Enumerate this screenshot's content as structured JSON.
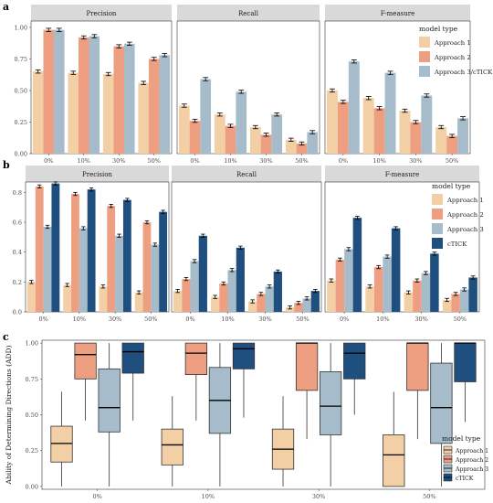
{
  "colors": {
    "approach1": "#f2cfa5",
    "approach2": "#ee9f82",
    "approach3": "#a7bccb",
    "etick": "#1f4f7e",
    "strip": "#d9d9d9",
    "panelBorder": "#333333"
  },
  "chart_data": [
    {
      "type": "bar",
      "panel_tag": "a",
      "facets": [
        "Precision",
        "Recall",
        "F-measure"
      ],
      "categories": [
        "0%",
        "10%",
        "30%",
        "50%"
      ],
      "ylim": [
        0,
        1.05
      ],
      "yticks": [
        "0.00",
        "0.25",
        "0.50",
        "0.75",
        "1.00"
      ],
      "ytick_values": [
        0,
        0.25,
        0.5,
        0.75,
        1.0
      ],
      "legend_title": "model type",
      "series": [
        {
          "name": "Approach 1",
          "color_key": "approach1",
          "values": [
            [
              0.65,
              0.64,
              0.63,
              0.56
            ],
            [
              0.38,
              0.31,
              0.21,
              0.11
            ],
            [
              0.5,
              0.44,
              0.34,
              0.21
            ]
          ]
        },
        {
          "name": "Approach 2",
          "color_key": "approach2",
          "values": [
            [
              0.98,
              0.92,
              0.85,
              0.75
            ],
            [
              0.26,
              0.22,
              0.15,
              0.08
            ],
            [
              0.41,
              0.36,
              0.25,
              0.14
            ]
          ]
        },
        {
          "name": "Approach 3/cTICK",
          "color_key": "approach3",
          "values": [
            [
              0.98,
              0.93,
              0.87,
              0.78
            ],
            [
              0.59,
              0.49,
              0.31,
              0.17
            ],
            [
              0.73,
              0.64,
              0.46,
              0.28
            ]
          ]
        }
      ]
    },
    {
      "type": "bar",
      "panel_tag": "b",
      "facets": [
        "Precision",
        "Recall",
        "F-measure"
      ],
      "categories": [
        "0%",
        "10%",
        "30%",
        "50%"
      ],
      "ylim": [
        0,
        0.87
      ],
      "yticks": [
        "0.0",
        "0.2",
        "0.4",
        "0.6",
        "0.8"
      ],
      "ytick_values": [
        0,
        0.2,
        0.4,
        0.6,
        0.8
      ],
      "legend_title": "model type",
      "series": [
        {
          "name": "Approach 1",
          "color_key": "approach1",
          "values": [
            [
              0.2,
              0.18,
              0.17,
              0.13
            ],
            [
              0.14,
              0.1,
              0.07,
              0.03
            ],
            [
              0.21,
              0.17,
              0.13,
              0.08
            ]
          ]
        },
        {
          "name": "Approach 2",
          "color_key": "approach2",
          "values": [
            [
              0.84,
              0.79,
              0.71,
              0.6
            ],
            [
              0.22,
              0.19,
              0.12,
              0.06
            ],
            [
              0.35,
              0.3,
              0.21,
              0.12
            ]
          ]
        },
        {
          "name": "Approach 3",
          "color_key": "approach3",
          "values": [
            [
              0.57,
              0.56,
              0.51,
              0.45
            ],
            [
              0.34,
              0.28,
              0.17,
              0.09
            ],
            [
              0.42,
              0.37,
              0.26,
              0.15
            ]
          ]
        },
        {
          "name": "cTICK",
          "color_key": "etick",
          "values": [
            [
              0.86,
              0.82,
              0.75,
              0.67
            ],
            [
              0.51,
              0.43,
              0.27,
              0.14
            ],
            [
              0.63,
              0.56,
              0.39,
              0.23
            ]
          ]
        }
      ]
    },
    {
      "type": "box",
      "panel_tag": "c",
      "ylabel": "Ability of Determining Directions (ADD)",
      "categories": [
        "0%",
        "10%",
        "30%",
        "50%"
      ],
      "ylim": [
        -0.02,
        1.02
      ],
      "yticks": [
        "0.00",
        "0.25",
        "0.50",
        "0.75",
        "1.00"
      ],
      "ytick_values": [
        0,
        0.25,
        0.5,
        0.75,
        1.0
      ],
      "legend_title": "model type",
      "series": [
        {
          "name": "Approach 1",
          "color_key": "approach1",
          "boxes": [
            {
              "min": 0.0,
              "q1": 0.17,
              "median": 0.3,
              "q3": 0.42,
              "max": 0.66
            },
            {
              "min": 0.0,
              "q1": 0.15,
              "median": 0.29,
              "q3": 0.4,
              "max": 0.63
            },
            {
              "min": 0.0,
              "q1": 0.12,
              "median": 0.26,
              "q3": 0.4,
              "max": 0.63
            },
            {
              "min": 0.0,
              "q1": 0.0,
              "median": 0.22,
              "q3": 0.36,
              "max": 0.66
            }
          ]
        },
        {
          "name": "Approach 2",
          "color_key": "approach2",
          "boxes": [
            {
              "min": 0.46,
              "q1": 0.75,
              "median": 0.92,
              "q3": 1.0,
              "max": 1.0
            },
            {
              "min": 0.46,
              "q1": 0.78,
              "median": 0.93,
              "q3": 1.0,
              "max": 1.0
            },
            {
              "min": 0.33,
              "q1": 0.67,
              "median": 1.0,
              "q3": 1.0,
              "max": 1.0
            },
            {
              "min": 0.33,
              "q1": 0.67,
              "median": 1.0,
              "q3": 1.0,
              "max": 1.0
            }
          ]
        },
        {
          "name": "Approach 3",
          "color_key": "approach3",
          "boxes": [
            {
              "min": 0.0,
              "q1": 0.38,
              "median": 0.55,
              "q3": 0.82,
              "max": 1.0
            },
            {
              "min": 0.0,
              "q1": 0.37,
              "median": 0.6,
              "q3": 0.83,
              "max": 1.0
            },
            {
              "min": 0.0,
              "q1": 0.36,
              "median": 0.56,
              "q3": 0.8,
              "max": 1.0
            },
            {
              "min": 0.0,
              "q1": 0.3,
              "median": 0.55,
              "q3": 0.86,
              "max": 1.0
            }
          ]
        },
        {
          "name": "cTICK",
          "color_key": "etick",
          "boxes": [
            {
              "min": 0.46,
              "q1": 0.79,
              "median": 0.94,
              "q3": 1.0,
              "max": 1.0
            },
            {
              "min": 0.48,
              "q1": 0.82,
              "median": 0.96,
              "q3": 1.0,
              "max": 1.0
            },
            {
              "min": 0.5,
              "q1": 0.75,
              "median": 0.93,
              "q3": 1.0,
              "max": 1.0
            },
            {
              "min": 0.45,
              "q1": 0.73,
              "median": 1.0,
              "q3": 1.0,
              "max": 1.0
            }
          ]
        }
      ]
    }
  ]
}
